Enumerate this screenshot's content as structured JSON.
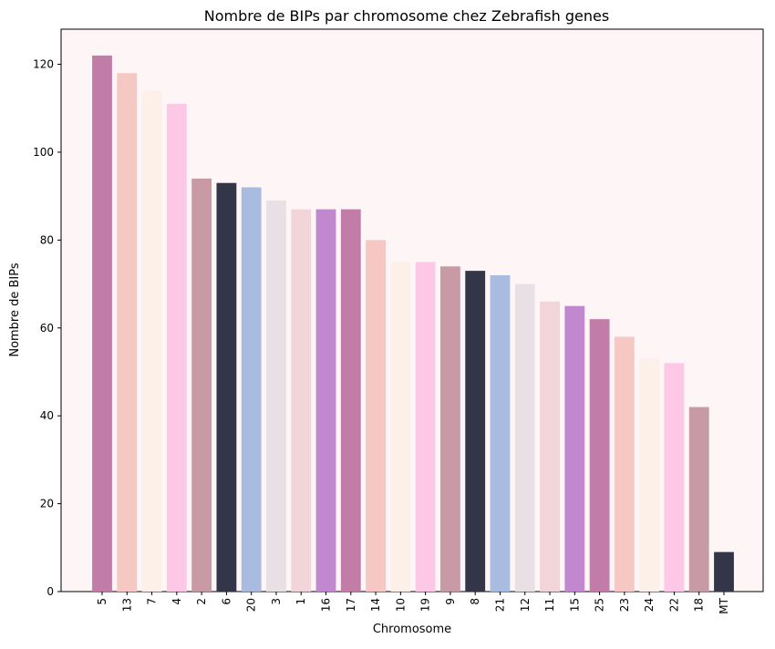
{
  "chart_data": {
    "type": "bar",
    "title": "Nombre de BIPs par chromosome chez Zebrafish genes",
    "xlabel": "Chromosome",
    "ylabel": "Nombre de BIPs",
    "ylim": [
      0,
      128
    ],
    "yticks": [
      0,
      20,
      40,
      60,
      80,
      100,
      120
    ],
    "grid": false,
    "categories": [
      "5",
      "13",
      "7",
      "4",
      "2",
      "6",
      "20",
      "3",
      "1",
      "16",
      "17",
      "14",
      "10",
      "19",
      "9",
      "8",
      "21",
      "12",
      "11",
      "15",
      "25",
      "23",
      "24",
      "22",
      "18",
      "MT"
    ],
    "values": [
      122,
      118,
      114,
      111,
      94,
      93,
      92,
      89,
      87,
      87,
      87,
      80,
      75,
      75,
      74,
      73,
      72,
      70,
      66,
      65,
      62,
      58,
      53,
      52,
      42,
      9
    ],
    "colors": [
      "#c17ca8",
      "#f6c8c3",
      "#fdf0e8",
      "#fdc8e5",
      "#c79aa5",
      "#323648",
      "#a9bbdf",
      "#e9e0e6",
      "#f2d5d8",
      "#c288cf",
      "#c17ca8",
      "#f6c8c3",
      "#fdf0e8",
      "#fdc8e5",
      "#c79aa5",
      "#323648",
      "#a9bbdf",
      "#e9e0e6",
      "#f2d5d8",
      "#c288cf",
      "#c17ca8",
      "#f6c8c3",
      "#fdf0e8",
      "#fdc8e5",
      "#c79aa5",
      "#323648"
    ],
    "plot_background": "#fdf5f6"
  }
}
